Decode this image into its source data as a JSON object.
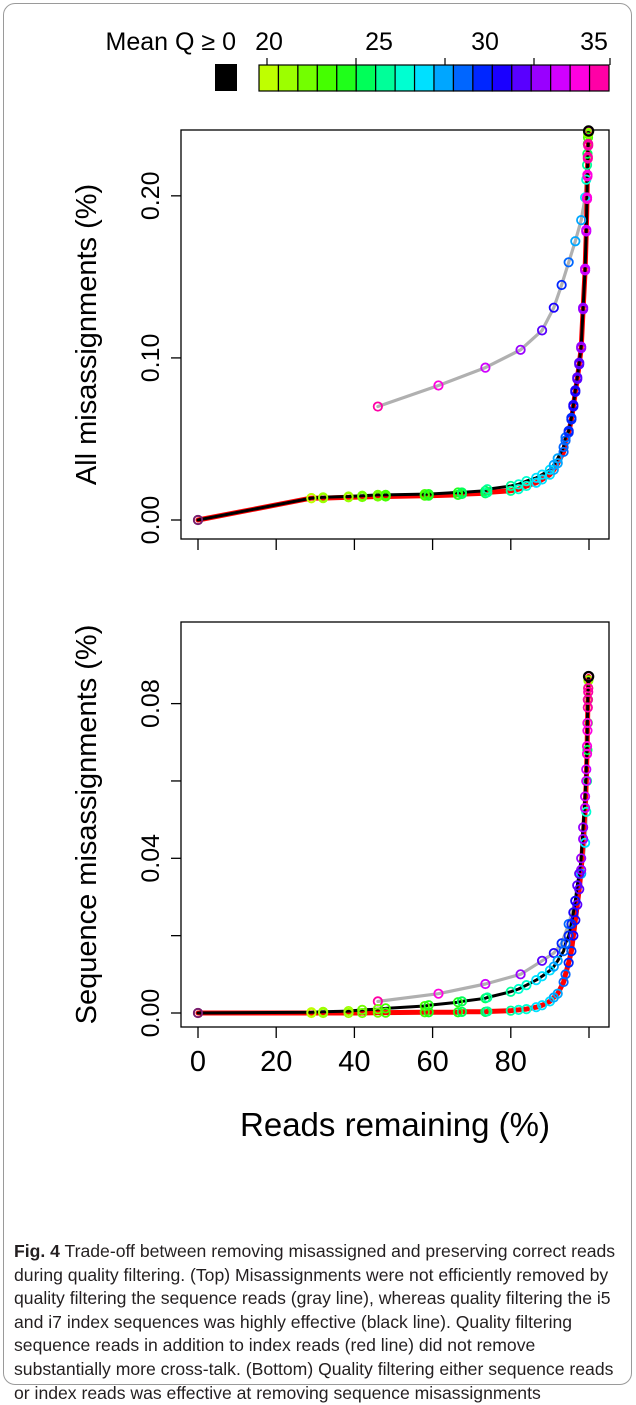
{
  "legend": {
    "mean_q_label": "Mean Q ≥ 0",
    "tick_labels": [
      "20",
      "25",
      "30",
      "35"
    ],
    "mean_q_color": "#000000",
    "quality_colors": [
      "#BFFF00",
      "#9CFF00",
      "#73FF00",
      "#45FF00",
      "#1FFF1A",
      "#00FF59",
      "#00FF99",
      "#00FFD1",
      "#00E0FF",
      "#00A6FF",
      "#0066FF",
      "#0026FF",
      "#1A00FF",
      "#5900FF",
      "#9900FF",
      "#D100FF",
      "#FF00E0",
      "#FF00A6"
    ]
  },
  "chart_data": [
    {
      "type": "line",
      "ylabel": "All misassignments (%)",
      "xlabel": "",
      "xlim": [
        0,
        100
      ],
      "ylim": [
        0,
        0.24
      ],
      "yticks": [
        0.0,
        0.1,
        0.2
      ],
      "ytick_labels": [
        "0.00",
        "0.10",
        "0.20"
      ],
      "xticks": [
        0,
        20,
        40,
        60,
        80,
        100
      ],
      "xtick_labels": [],
      "series": [
        {
          "color": "#b0b0b0",
          "x": [
            46,
            61.5,
            73.5,
            82.5,
            88,
            91,
            93,
            94.8,
            96.5,
            98,
            99,
            99.3,
            99.5,
            99.6,
            99.7,
            99.75,
            99.8,
            99.85,
            99.9
          ],
          "y": [
            0.07,
            0.083,
            0.094,
            0.105,
            0.117,
            0.131,
            0.145,
            0.159,
            0.172,
            0.185,
            0.199,
            0.21,
            0.219,
            0.226,
            0.232,
            0.236,
            0.238,
            0.239,
            0.24
          ]
        },
        {
          "color": "#000000",
          "x": [
            0,
            29,
            32,
            38.5,
            42,
            46,
            48,
            58,
            59,
            66.5,
            67.5,
            73.5,
            74,
            80,
            82,
            84,
            86.5,
            88,
            90,
            91,
            92,
            93.5,
            94,
            94.8,
            95.5,
            96,
            96.5,
            97,
            97.5,
            98,
            98.5,
            99,
            99.3,
            99.5,
            99.6,
            99.7,
            99.8,
            99.9
          ],
          "y": [
            0.0,
            0.0135,
            0.014,
            0.0145,
            0.015,
            0.0155,
            0.0155,
            0.016,
            0.016,
            0.017,
            0.017,
            0.018,
            0.019,
            0.021,
            0.022,
            0.024,
            0.026,
            0.028,
            0.031,
            0.034,
            0.038,
            0.045,
            0.051,
            0.055,
            0.063,
            0.071,
            0.08,
            0.088,
            0.097,
            0.107,
            0.131,
            0.155,
            0.179,
            0.199,
            0.213,
            0.224,
            0.232,
            0.24
          ]
        },
        {
          "color": "#ff0000",
          "x": [
            0,
            29,
            32,
            38.5,
            42,
            46,
            48,
            58,
            59,
            66.5,
            67.5,
            73.5,
            74,
            80,
            82,
            84,
            86.5,
            88,
            90,
            91,
            92,
            93.5,
            94,
            94.8,
            95.5,
            96,
            96.5,
            97,
            97.5,
            98,
            98.5,
            99,
            99.3,
            99.5,
            99.6,
            99.7,
            99.8,
            99.9
          ],
          "y": [
            0.0,
            0.0135,
            0.0135,
            0.014,
            0.0142,
            0.0145,
            0.0145,
            0.015,
            0.015,
            0.0155,
            0.016,
            0.0165,
            0.017,
            0.018,
            0.019,
            0.021,
            0.023,
            0.025,
            0.028,
            0.031,
            0.035,
            0.042,
            0.049,
            0.054,
            0.062,
            0.07,
            0.079,
            0.087,
            0.096,
            0.106,
            0.13,
            0.154,
            0.178,
            0.198,
            0.212,
            0.223,
            0.231,
            0.24
          ]
        }
      ]
    },
    {
      "type": "line",
      "ylabel": "Sequence misassignments (%)",
      "xlabel": "Reads remaining (%)",
      "xlim": [
        0,
        100
      ],
      "ylim": [
        0,
        0.098
      ],
      "yticks": [
        0.0,
        0.02,
        0.04,
        0.06,
        0.08
      ],
      "ytick_labels": [
        "0.00",
        "",
        "0.04",
        "",
        "0.08"
      ],
      "xticks": [
        0,
        20,
        40,
        60,
        80,
        100
      ],
      "xtick_labels": [
        "0",
        "20",
        "40",
        "60",
        "80",
        ""
      ],
      "series": [
        {
          "color": "#b0b0b0",
          "x": [
            46,
            61.5,
            73.5,
            82.5,
            88,
            91,
            93,
            94.8,
            96.5,
            98,
            99,
            99.3,
            99.5,
            99.6,
            99.7,
            99.75,
            99.8,
            99.85,
            99.9
          ],
          "y": [
            0.003,
            0.005,
            0.0075,
            0.01,
            0.0135,
            0.0155,
            0.018,
            0.023,
            0.029,
            0.036,
            0.044,
            0.052,
            0.06,
            0.068,
            0.075,
            0.081,
            0.084,
            0.086,
            0.087
          ]
        },
        {
          "color": "#000000",
          "x": [
            0,
            29,
            32,
            38.5,
            42,
            46,
            48,
            58,
            59,
            66.5,
            67.5,
            73.5,
            74,
            80,
            82,
            84,
            86.5,
            88,
            90,
            91,
            92,
            93.5,
            94,
            94.8,
            95.5,
            96,
            96.5,
            97,
            97.5,
            98,
            98.5,
            99,
            99.3,
            99.5,
            99.6,
            99.7,
            99.8,
            99.9
          ],
          "y": [
            0.0,
            0.0002,
            0.0003,
            0.0005,
            0.0008,
            0.001,
            0.0012,
            0.0018,
            0.002,
            0.0028,
            0.003,
            0.0038,
            0.004,
            0.0055,
            0.0062,
            0.0072,
            0.0085,
            0.0095,
            0.011,
            0.012,
            0.0135,
            0.016,
            0.018,
            0.02,
            0.023,
            0.026,
            0.029,
            0.033,
            0.036,
            0.04,
            0.048,
            0.056,
            0.063,
            0.069,
            0.075,
            0.081,
            0.084,
            0.087
          ]
        },
        {
          "color": "#ff0000",
          "x": [
            0,
            29,
            32,
            38.5,
            42,
            46,
            48,
            58,
            59,
            66.5,
            67.5,
            73.5,
            74,
            80,
            82,
            84,
            86.5,
            88,
            90,
            91,
            92,
            93.5,
            94,
            94.8,
            95.5,
            96,
            96.5,
            97,
            97.5,
            98,
            98.5,
            99,
            99.3,
            99.5,
            99.6,
            99.7,
            99.8,
            99.9
          ],
          "y": [
            0.0,
            0.0,
            0.0,
            0.0,
            0.0,
            0.0001,
            0.0001,
            0.0002,
            0.0002,
            0.0002,
            0.0003,
            0.0003,
            0.0004,
            0.0006,
            0.0008,
            0.001,
            0.0015,
            0.002,
            0.003,
            0.004,
            0.005,
            0.008,
            0.01,
            0.013,
            0.016,
            0.02,
            0.024,
            0.028,
            0.032,
            0.037,
            0.045,
            0.053,
            0.06,
            0.067,
            0.073,
            0.079,
            0.083,
            0.087
          ]
        }
      ]
    }
  ],
  "caption": {
    "label": "Fig. 4",
    "text": " Trade-off between removing misassigned and preserving correct reads during quality filtering. (Top) Misassignments were not efficiently removed by quality filtering the sequence reads (gray line), whereas quality filtering the i5 and i7 index sequences was highly effective (black line). Quality filtering sequence reads in addition to index reads (red line) did not remove substantially more cross-talk. (Bottom) Quality filtering either sequence reads or index reads was effective at removing sequence misassignments"
  }
}
